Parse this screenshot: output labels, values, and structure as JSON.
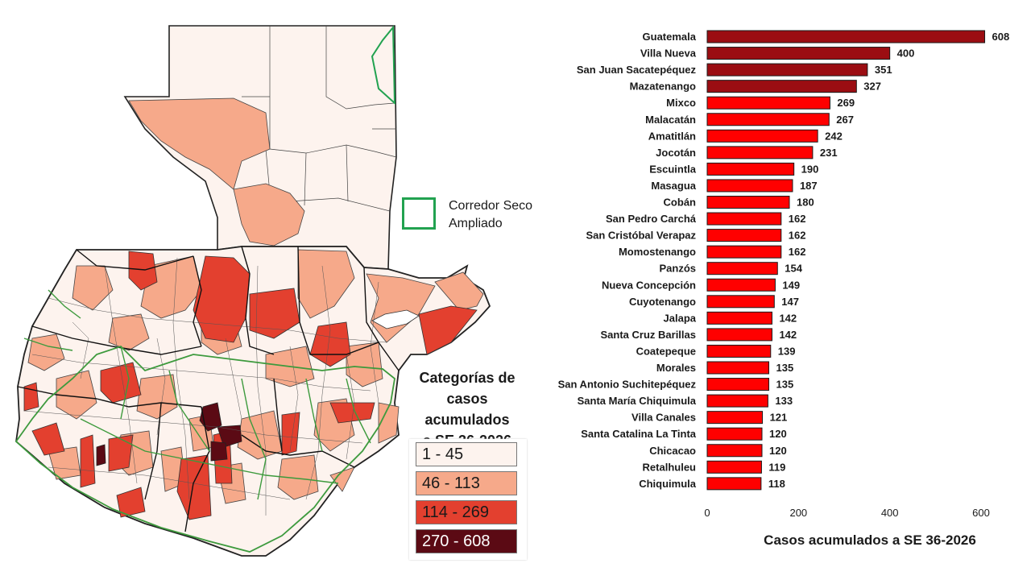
{
  "map": {
    "corridor_label_line1": "Corredor Seco",
    "corridor_label_line2": "Ampliado",
    "corridor_color": "#22a250",
    "legend_title_line1": "Categorías de",
    "legend_title_line2": "casos acumulados",
    "legend_title_line3": "a SE 36-2026",
    "legend": [
      {
        "label": "1 - 45",
        "color": "#fdf3ee",
        "text_color": "#1a1a1a"
      },
      {
        "label": "46 - 113",
        "color": "#f6a98a",
        "text_color": "#1a1a1a"
      },
      {
        "label": "114 - 269",
        "color": "#e3402f",
        "text_color": "#1a1a1a"
      },
      {
        "label": "270 - 608",
        "color": "#5b0a14",
        "text_color": "#ffffff"
      }
    ]
  },
  "chart_data": {
    "type": "bar",
    "orientation": "horizontal",
    "categories": [
      "Guatemala",
      "Villa Nueva",
      "San Juan Sacatepéquez",
      "Mazatenango",
      "Mixco",
      "Malacatán",
      "Amatitlán",
      "Jocotán",
      "Escuintla",
      "Masagua",
      "Cobán",
      "San Pedro Carchá",
      "San Cristóbal Verapaz",
      "Momostenango",
      "Panzós",
      "Nueva Concepción",
      "Cuyotenango",
      "Jalapa",
      "Santa Cruz Barillas",
      "Coatepeque",
      "Morales",
      "San Antonio Suchitepéquez",
      "Santa María Chiquimula",
      "Villa Canales",
      "Santa Catalina La Tinta",
      "Chicacao",
      "Retalhuleu",
      "Chiquimula"
    ],
    "values": [
      608,
      400,
      351,
      327,
      269,
      267,
      242,
      231,
      190,
      187,
      180,
      162,
      162,
      162,
      154,
      149,
      147,
      142,
      142,
      139,
      135,
      135,
      133,
      121,
      120,
      120,
      119,
      118
    ],
    "xlabel": "Casos acumulados a SE 36-2026",
    "xlim": [
      0,
      600
    ],
    "xticks": [
      0,
      200,
      400,
      600
    ],
    "grid": false,
    "colors": {
      "high": "#9b0d12",
      "mid": "#ff0000",
      "border": "#1a1a1a"
    }
  }
}
